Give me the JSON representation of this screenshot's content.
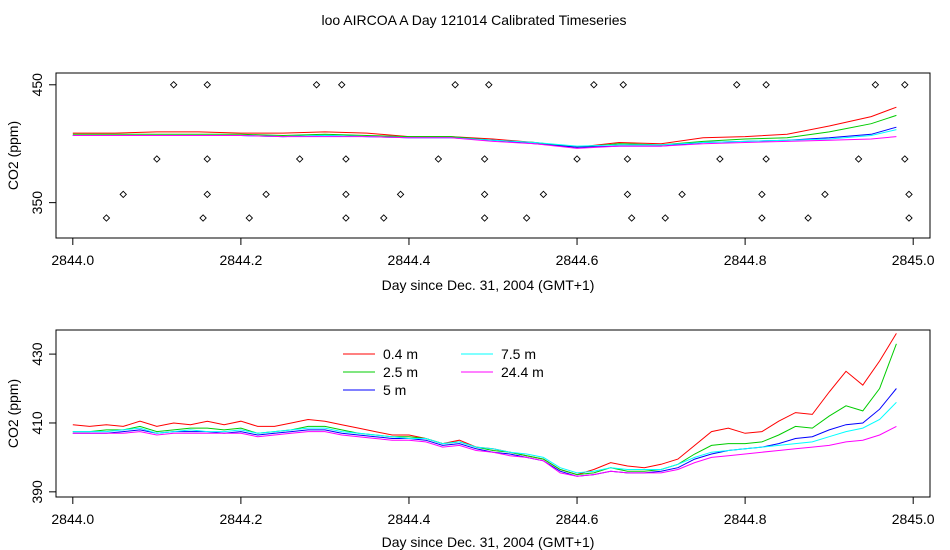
{
  "title": "loo AIRCOA A  Day 121014  Calibrated Timeseries",
  "colors": {
    "0.4 m": "#ff0000",
    "2.5 m": "#00cc00",
    "5 m": "#0000ff",
    "7.5 m": "#00ffff",
    "24.4 m": "#ff00ff"
  },
  "chart_data": [
    {
      "type": "line+scatter",
      "xlabel": "Day since Dec. 31, 2004 (GMT+1)",
      "ylabel": "CO2 (ppm)",
      "xlim": [
        2843.98,
        2845.02
      ],
      "ylim": [
        320,
        460
      ],
      "xticks": [
        2844.0,
        2844.2,
        2844.4,
        2844.6,
        2844.8,
        2845.0
      ],
      "xtick_labels": [
        "2844.0",
        "2844.2",
        "2844.4",
        "2844.6",
        "2844.8",
        "2845.0"
      ],
      "yticks": [
        350,
        450
      ],
      "ytick_labels": [
        "350",
        "450"
      ],
      "x": [
        2844.0,
        2844.05,
        2844.1,
        2844.15,
        2844.2,
        2844.25,
        2844.3,
        2844.35,
        2844.4,
        2844.45,
        2844.5,
        2844.55,
        2844.6,
        2844.65,
        2844.7,
        2844.75,
        2844.8,
        2844.85,
        2844.9,
        2844.95,
        2844.98
      ],
      "series": [
        {
          "name": "0.4 m",
          "values": [
            409,
            409,
            410,
            410,
            409,
            409,
            410,
            409,
            406,
            406,
            404,
            401,
            397,
            401,
            400,
            405,
            406,
            408,
            415,
            423,
            431
          ]
        },
        {
          "name": "2.5 m",
          "values": [
            408,
            408,
            408,
            408,
            408,
            407,
            408,
            407,
            406,
            406,
            403,
            401,
            397,
            400,
            399,
            402,
            404,
            405,
            410,
            417,
            424
          ]
        },
        {
          "name": "5 m",
          "values": [
            407,
            407,
            407,
            407,
            407,
            406,
            407,
            406,
            405,
            405,
            403,
            400,
            397,
            398,
            398,
            401,
            402,
            403,
            405,
            408,
            414
          ]
        },
        {
          "name": "7.5 m",
          "values": [
            407,
            407,
            407,
            407,
            407,
            406,
            407,
            406,
            405,
            405,
            403,
            401,
            398,
            399,
            399,
            401,
            402,
            403,
            404,
            407,
            412
          ]
        },
        {
          "name": "24.4 m",
          "values": [
            407,
            407,
            407,
            407,
            407,
            406,
            406,
            406,
            405,
            405,
            402,
            400,
            396,
            398,
            398,
            400,
            401,
            402,
            403,
            404,
            406
          ]
        }
      ],
      "scatter": [
        {
          "x": 2844.04,
          "y": 337
        },
        {
          "x": 2844.06,
          "y": 357
        },
        {
          "x": 2844.1,
          "y": 387
        },
        {
          "x": 2844.12,
          "y": 450
        },
        {
          "x": 2844.155,
          "y": 337
        },
        {
          "x": 2844.16,
          "y": 357
        },
        {
          "x": 2844.16,
          "y": 387
        },
        {
          "x": 2844.16,
          "y": 450
        },
        {
          "x": 2844.21,
          "y": 337
        },
        {
          "x": 2844.23,
          "y": 357
        },
        {
          "x": 2844.27,
          "y": 387
        },
        {
          "x": 2844.29,
          "y": 450
        },
        {
          "x": 2844.32,
          "y": 450
        },
        {
          "x": 2844.325,
          "y": 387
        },
        {
          "x": 2844.325,
          "y": 357
        },
        {
          "x": 2844.325,
          "y": 337
        },
        {
          "x": 2844.37,
          "y": 337
        },
        {
          "x": 2844.39,
          "y": 357
        },
        {
          "x": 2844.435,
          "y": 387
        },
        {
          "x": 2844.455,
          "y": 450
        },
        {
          "x": 2844.49,
          "y": 337
        },
        {
          "x": 2844.49,
          "y": 357
        },
        {
          "x": 2844.49,
          "y": 387
        },
        {
          "x": 2844.495,
          "y": 450
        },
        {
          "x": 2844.54,
          "y": 337
        },
        {
          "x": 2844.56,
          "y": 357
        },
        {
          "x": 2844.6,
          "y": 387
        },
        {
          "x": 2844.62,
          "y": 450
        },
        {
          "x": 2844.655,
          "y": 450
        },
        {
          "x": 2844.66,
          "y": 387
        },
        {
          "x": 2844.66,
          "y": 357
        },
        {
          "x": 2844.665,
          "y": 337
        },
        {
          "x": 2844.705,
          "y": 337
        },
        {
          "x": 2844.725,
          "y": 357
        },
        {
          "x": 2844.77,
          "y": 387
        },
        {
          "x": 2844.79,
          "y": 450
        },
        {
          "x": 2844.82,
          "y": 337
        },
        {
          "x": 2844.82,
          "y": 357
        },
        {
          "x": 2844.825,
          "y": 387
        },
        {
          "x": 2844.825,
          "y": 450
        },
        {
          "x": 2844.875,
          "y": 337
        },
        {
          "x": 2844.895,
          "y": 357
        },
        {
          "x": 2844.935,
          "y": 387
        },
        {
          "x": 2844.955,
          "y": 450
        },
        {
          "x": 2844.99,
          "y": 450
        },
        {
          "x": 2844.99,
          "y": 387
        },
        {
          "x": 2844.995,
          "y": 357
        },
        {
          "x": 2844.995,
          "y": 337
        }
      ]
    },
    {
      "type": "line",
      "xlabel": "Day since Dec. 31, 2004 (GMT+1)",
      "ylabel": "CO2 (ppm)",
      "xlim": [
        2843.98,
        2845.02
      ],
      "ylim": [
        388.5,
        437
      ],
      "xticks": [
        2844.0,
        2844.2,
        2844.4,
        2844.6,
        2844.8,
        2845.0
      ],
      "xtick_labels": [
        "2844.0",
        "2844.2",
        "2844.4",
        "2844.6",
        "2844.8",
        "2845.0"
      ],
      "yticks": [
        390,
        410,
        430
      ],
      "ytick_labels": [
        "390",
        "410",
        "430"
      ],
      "legend_placement": "top-left",
      "x": [
        2844.0,
        2844.02,
        2844.04,
        2844.06,
        2844.08,
        2844.1,
        2844.12,
        2844.14,
        2844.16,
        2844.18,
        2844.2,
        2844.22,
        2844.24,
        2844.26,
        2844.28,
        2844.3,
        2844.32,
        2844.34,
        2844.36,
        2844.38,
        2844.4,
        2844.42,
        2844.44,
        2844.46,
        2844.48,
        2844.5,
        2844.52,
        2844.54,
        2844.56,
        2844.58,
        2844.6,
        2844.62,
        2844.64,
        2844.66,
        2844.68,
        2844.7,
        2844.72,
        2844.74,
        2844.76,
        2844.78,
        2844.8,
        2844.82,
        2844.84,
        2844.86,
        2844.88,
        2844.9,
        2844.92,
        2844.94,
        2844.96,
        2844.98
      ],
      "series": [
        {
          "name": "0.4 m",
          "values": [
            409.5,
            409.0,
            409.5,
            409.0,
            410.5,
            409.0,
            410.0,
            409.5,
            410.5,
            409.5,
            410.5,
            409.0,
            409.0,
            410.0,
            411.0,
            410.5,
            409.5,
            408.5,
            407.5,
            406.5,
            406.5,
            405.5,
            404.0,
            405.0,
            403.0,
            402.5,
            401.5,
            400.5,
            399.5,
            396.5,
            395.0,
            396.5,
            398.5,
            397.5,
            397.0,
            398.0,
            399.5,
            403.5,
            407.5,
            408.5,
            407.0,
            407.5,
            410.5,
            413.0,
            412.5,
            419.0,
            425.0,
            421.0,
            428.0,
            436.0
          ]
        },
        {
          "name": "2.5 m",
          "values": [
            407.5,
            407.5,
            408.0,
            408.0,
            409.0,
            407.5,
            408.0,
            408.5,
            408.5,
            408.0,
            408.5,
            407.0,
            407.5,
            408.0,
            409.0,
            409.0,
            408.0,
            407.0,
            406.5,
            406.0,
            406.0,
            405.5,
            404.0,
            404.5,
            403.0,
            402.0,
            401.5,
            400.5,
            399.5,
            396.5,
            395.0,
            395.5,
            397.0,
            396.0,
            396.0,
            396.5,
            398.0,
            401.0,
            403.5,
            404.0,
            404.0,
            404.5,
            406.5,
            409.0,
            408.5,
            412.0,
            415.0,
            413.5,
            420.0,
            433.0
          ]
        },
        {
          "name": "5 m",
          "values": [
            407.0,
            407.0,
            407.0,
            407.5,
            408.0,
            407.0,
            407.5,
            407.5,
            407.5,
            407.0,
            407.5,
            406.5,
            407.0,
            407.5,
            408.0,
            408.0,
            407.0,
            406.5,
            406.0,
            405.5,
            405.5,
            405.0,
            403.5,
            404.0,
            402.5,
            401.5,
            401.0,
            400.0,
            399.0,
            396.0,
            394.5,
            395.0,
            396.0,
            395.5,
            395.5,
            396.0,
            397.0,
            399.5,
            401.0,
            402.0,
            402.5,
            403.0,
            404.0,
            405.5,
            406.0,
            408.0,
            409.5,
            410.0,
            414.0,
            420.0
          ]
        },
        {
          "name": "7.5 m",
          "values": [
            407.5,
            407.5,
            407.5,
            408.0,
            408.5,
            407.0,
            407.5,
            408.0,
            407.5,
            407.5,
            408.0,
            407.0,
            407.5,
            408.0,
            408.5,
            408.5,
            407.5,
            407.0,
            406.5,
            406.0,
            405.5,
            405.5,
            404.0,
            404.5,
            403.0,
            402.5,
            401.5,
            401.0,
            400.0,
            397.0,
            395.5,
            396.0,
            397.0,
            396.5,
            396.5,
            396.5,
            398.0,
            400.0,
            401.5,
            402.0,
            402.5,
            403.0,
            403.5,
            404.0,
            404.5,
            406.0,
            407.5,
            408.5,
            411.0,
            416.0
          ]
        },
        {
          "name": "24.4 m",
          "values": [
            407.0,
            407.0,
            407.0,
            407.0,
            407.5,
            406.5,
            407.0,
            407.0,
            407.0,
            407.0,
            407.0,
            406.0,
            406.5,
            407.0,
            407.5,
            407.5,
            406.5,
            406.0,
            405.5,
            405.0,
            405.0,
            404.5,
            403.0,
            403.5,
            402.0,
            401.5,
            400.5,
            400.0,
            399.0,
            395.5,
            394.5,
            395.0,
            396.0,
            395.5,
            395.5,
            395.5,
            396.5,
            398.5,
            400.0,
            400.5,
            401.0,
            401.5,
            402.0,
            402.5,
            403.0,
            403.5,
            404.5,
            405.0,
            406.5,
            409.0
          ]
        }
      ]
    }
  ]
}
